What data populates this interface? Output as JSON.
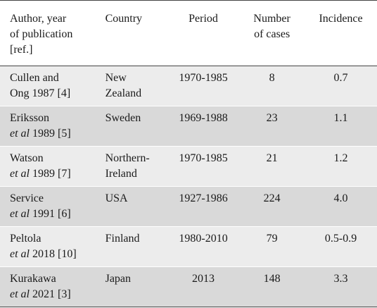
{
  "table": {
    "headers": {
      "author": [
        "Author, year",
        "of publication",
        "[ref.]"
      ],
      "country": [
        "Country"
      ],
      "period": [
        "Period"
      ],
      "cases": [
        "Number",
        "of cases"
      ],
      "incidence": [
        "Incidence"
      ]
    },
    "rows": [
      {
        "author_l1": "Cullen and",
        "author_l2": "Ong 1987 [4]",
        "author_l2_etal": "",
        "author_l2_rest": "",
        "country_l1": "New",
        "country_l2": "Zealand",
        "period": "1970-1985",
        "cases": "8",
        "incidence": "0.7"
      },
      {
        "author_l1": "Eriksson",
        "author_l2": "",
        "author_l2_etal": "et al",
        "author_l2_rest": " 1989 [5]",
        "country_l1": "Sweden",
        "country_l2": "",
        "period": "1969-1988",
        "cases": "23",
        "incidence": "1.1"
      },
      {
        "author_l1": "Watson",
        "author_l2": "",
        "author_l2_etal": "et al",
        "author_l2_rest": " 1989 [7]",
        "country_l1": "Northern-",
        "country_l2": "Ireland",
        "period": "1970-1985",
        "cases": "21",
        "incidence": "1.2"
      },
      {
        "author_l1": "Service",
        "author_l2": "",
        "author_l2_etal": "et al",
        "author_l2_rest": " 1991 [6]",
        "country_l1": "USA",
        "country_l2": "",
        "period": "1927-1986",
        "cases": "224",
        "incidence": "4.0"
      },
      {
        "author_l1": "Peltola",
        "author_l2": "",
        "author_l2_etal": "et al",
        "author_l2_rest": " 2018 [10]",
        "country_l1": "Finland",
        "country_l2": "",
        "period": "1980-2010",
        "cases": "79",
        "incidence": "0.5-0.9"
      },
      {
        "author_l1": "Kurakawa",
        "author_l2": "",
        "author_l2_etal": "et al",
        "author_l2_rest": " 2021 [3]",
        "country_l1": "Japan",
        "country_l2": "",
        "period": "2013",
        "cases": "148",
        "incidence": "3.3"
      }
    ]
  }
}
